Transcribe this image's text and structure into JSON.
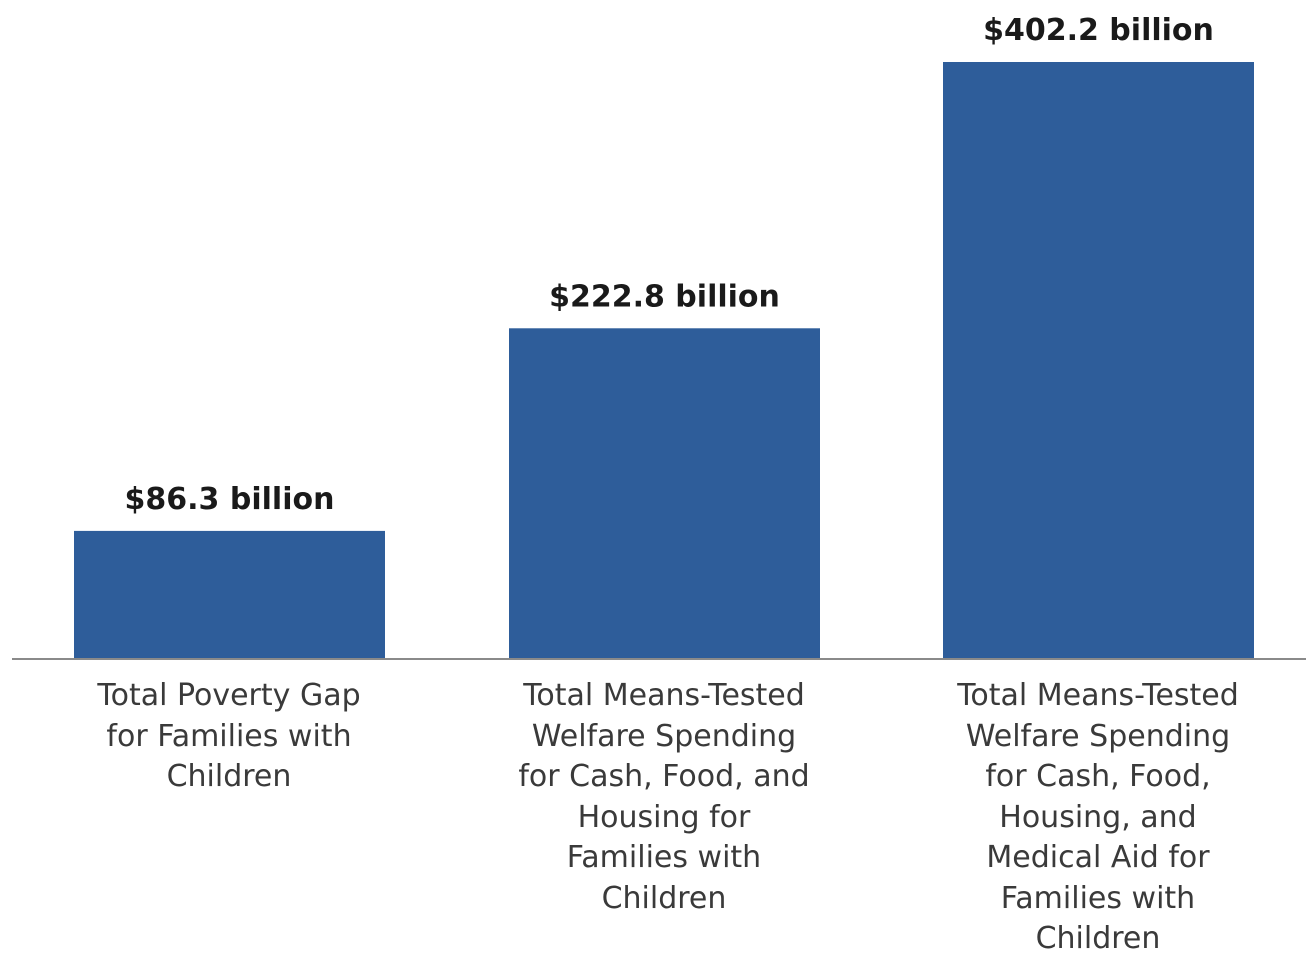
{
  "chart_data": {
    "type": "bar",
    "categories": [
      "Total Poverty Gap\nfor Families with\nChildren",
      "Total Means-Tested\nWelfare Spending\nfor Cash, Food, and\nHousing for\nFamilies with\nChildren",
      "Total Means-Tested\nWelfare Spending\nfor Cash, Food,\nHousing, and\nMedical Aid for\nFamilies with\nChildren"
    ],
    "values": [
      86.3,
      222.8,
      402.2
    ],
    "data_labels": [
      "$86.3 billion",
      "$222.8 billion",
      "$402.2 billion"
    ],
    "unit": "billion",
    "ylim": [
      0,
      402.2
    ],
    "grid": false,
    "bar_color": "#2E5D9A",
    "baseline_color": "#8a8a8a"
  }
}
